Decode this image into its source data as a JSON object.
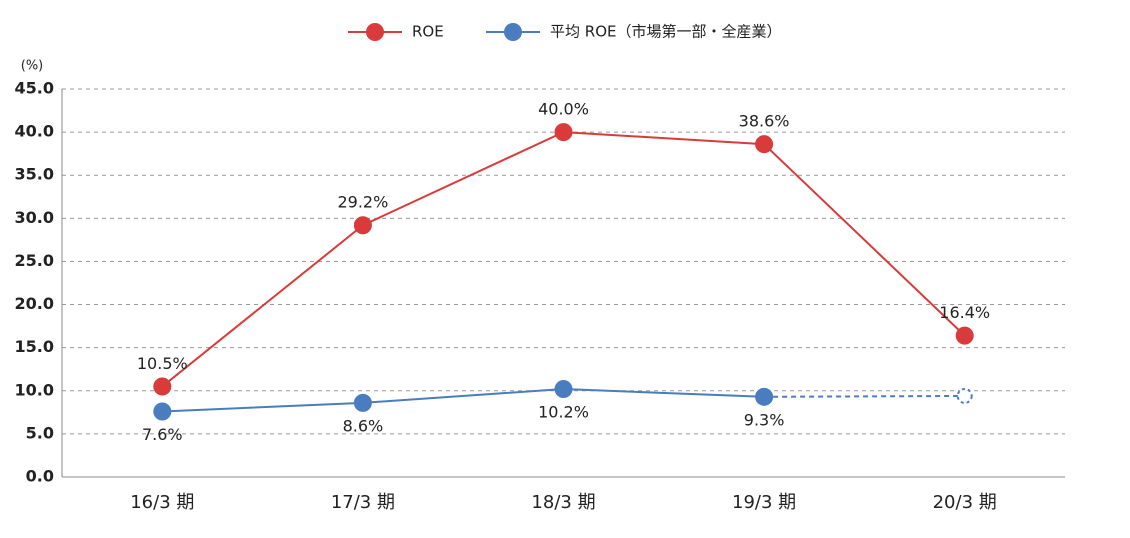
{
  "chart_data": {
    "type": "line",
    "y_unit_label": "(%)",
    "categories": [
      "16/3 期",
      "17/3 期",
      "18/3 期",
      "19/3 期",
      "20/3 期"
    ],
    "series": [
      {
        "name": "ROE",
        "color": "#d93a3a",
        "values": [
          10.5,
          29.2,
          40.0,
          38.6,
          16.4
        ],
        "value_labels": [
          "10.5%",
          "29.2%",
          "40.0%",
          "38.6%",
          "16.4%"
        ],
        "label_position": "above",
        "last_segment_dashed": false
      },
      {
        "name": "平均 ROE（市場第一部・全産業）",
        "color": "#4a7cc0",
        "values": [
          7.6,
          8.6,
          10.2,
          9.3,
          9.4
        ],
        "value_labels": [
          "7.6%",
          "8.6%",
          "10.2%",
          "9.3%",
          null
        ],
        "label_position": "below",
        "last_segment_dashed": true
      }
    ],
    "ylim": [
      0,
      45
    ],
    "yticks": [
      {
        "value": 0,
        "label": "0.0"
      },
      {
        "value": 5,
        "label": "5.0"
      },
      {
        "value": 10,
        "label": "10.0"
      },
      {
        "value": 15,
        "label": "15.0"
      },
      {
        "value": 20,
        "label": "20.0"
      },
      {
        "value": 25,
        "label": "25.0"
      },
      {
        "value": 30,
        "label": "30.0"
      },
      {
        "value": 35,
        "label": "35.0"
      },
      {
        "value": 40,
        "label": "40.0"
      },
      {
        "value": 45,
        "label": "45.0"
      }
    ],
    "grid": true,
    "legend": "top"
  }
}
